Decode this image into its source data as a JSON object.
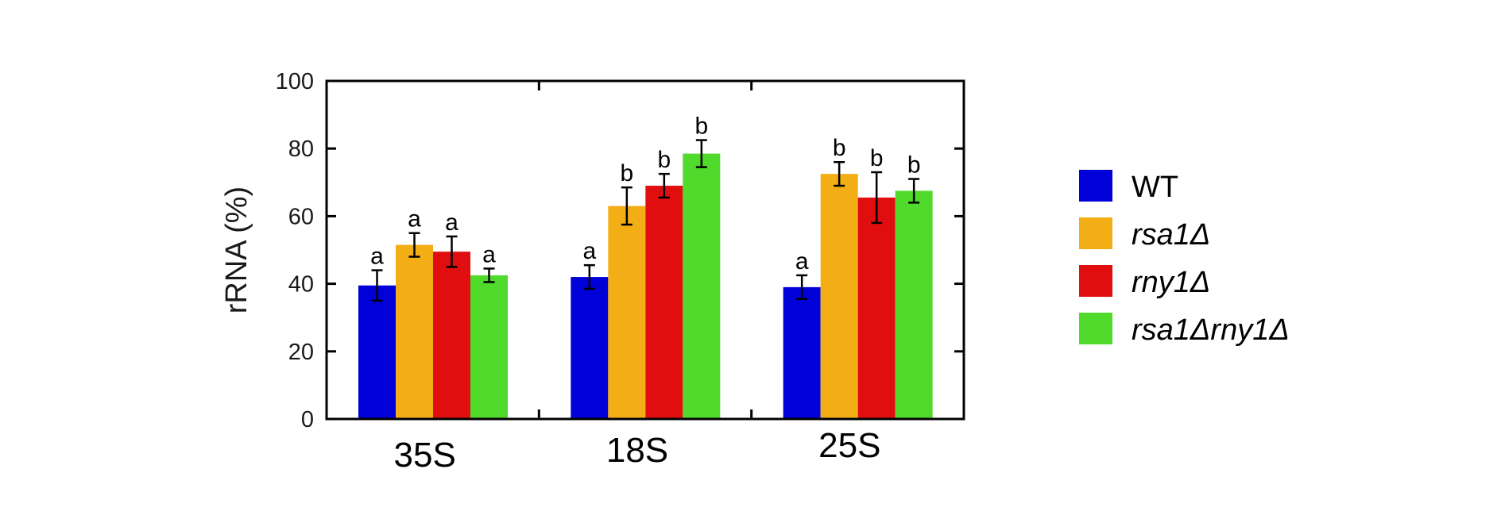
{
  "chart_data": {
    "type": "bar",
    "title": "",
    "xlabel": "",
    "ylabel": "rRNA (%)",
    "ylim": [
      0,
      100
    ],
    "yticks": [
      0,
      20,
      40,
      60,
      80,
      100
    ],
    "grid": false,
    "legend_position": "right",
    "categories": [
      "35S",
      "18S",
      "25S"
    ],
    "series": [
      {
        "name": "WT",
        "italic": false,
        "color": "#0000d8",
        "values": [
          39.5,
          42,
          39
        ],
        "errors": [
          4.5,
          3.5,
          3.5
        ],
        "labels": [
          "a",
          "a",
          "a"
        ]
      },
      {
        "name": "rsa1Δ",
        "italic": true,
        "color": "#f2ae14",
        "values": [
          51.5,
          63,
          72.5
        ],
        "errors": [
          3.5,
          5.5,
          3.5
        ],
        "labels": [
          "a",
          "b",
          "b"
        ]
      },
      {
        "name": "rny1Δ",
        "italic": true,
        "color": "#e00e0e",
        "values": [
          49.5,
          69,
          65.5
        ],
        "errors": [
          4.5,
          3.5,
          7.5
        ],
        "labels": [
          "a",
          "b",
          "b"
        ]
      },
      {
        "name": "rsa1Δrny1Δ",
        "italic": true,
        "color": "#50da2c",
        "values": [
          42.5,
          78.5,
          67.5
        ],
        "errors": [
          2.0,
          4.0,
          3.5
        ],
        "labels": [
          "a",
          "b",
          "b"
        ]
      }
    ]
  }
}
